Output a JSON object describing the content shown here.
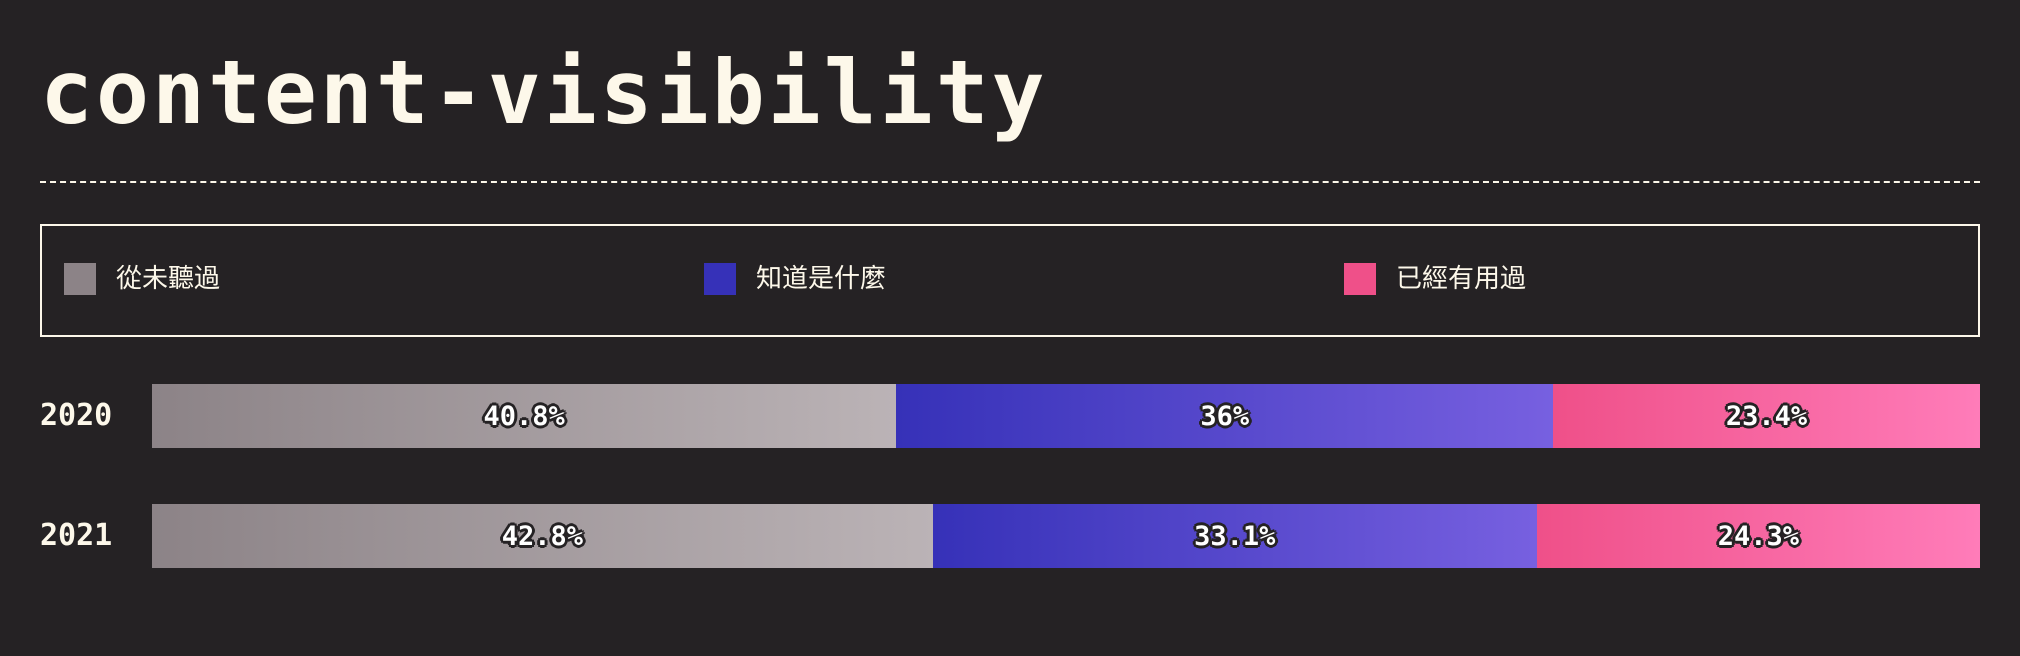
{
  "page": {
    "title": "content-visibility"
  },
  "legend": {
    "items": [
      {
        "label": "從未聽過",
        "color": "#8c8387"
      },
      {
        "label": "知道是什麼",
        "color": "#3631b8"
      },
      {
        "label": "已經有用過",
        "color": "#ef5089"
      }
    ]
  },
  "chart_data": {
    "type": "bar",
    "orientation": "horizontal",
    "stacked": true,
    "normalized": true,
    "title": "content-visibility",
    "legend_position": "top",
    "grid": false,
    "categories": [
      "2020",
      "2021"
    ],
    "series": [
      {
        "name": "從未聽過",
        "values": [
          40.8,
          42.8
        ],
        "labels": [
          "40.8%",
          "42.8%"
        ],
        "color": "#8c8387"
      },
      {
        "name": "知道是什麼",
        "values": [
          36,
          33.1
        ],
        "labels": [
          "36%",
          "33.1%"
        ],
        "color": "#3631b8"
      },
      {
        "name": "已經有用過",
        "values": [
          23.4,
          24.3
        ],
        "labels": [
          "23.4%",
          "24.3%"
        ],
        "color": "#ef5089"
      }
    ],
    "xlim": [
      0,
      100
    ]
  }
}
